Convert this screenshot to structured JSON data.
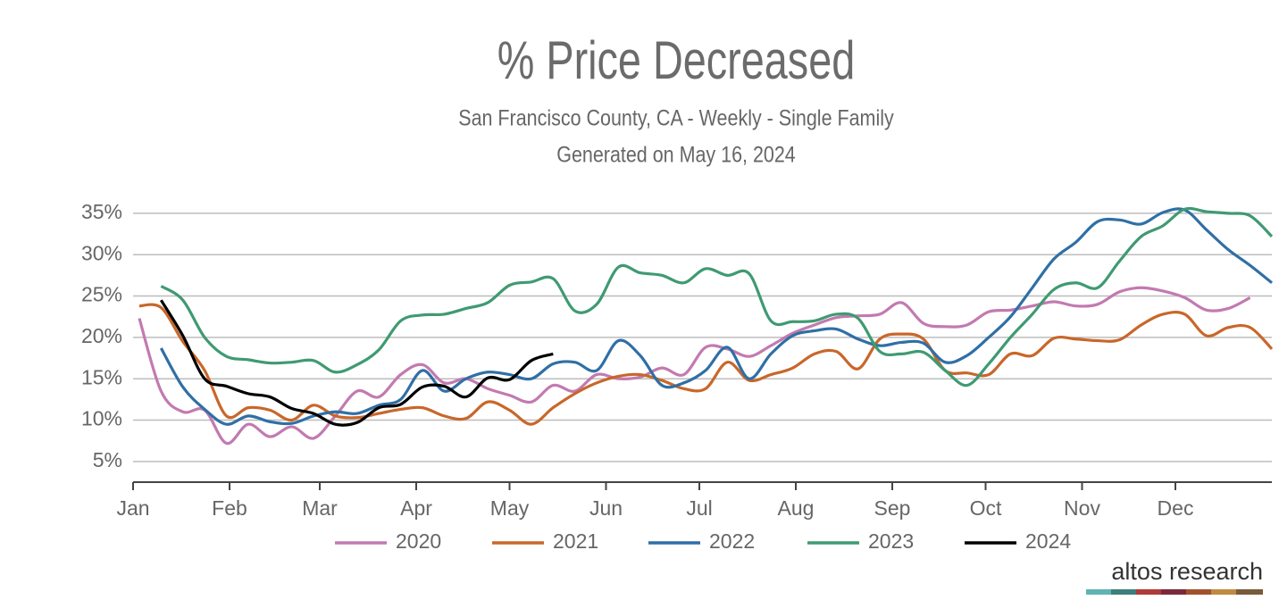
{
  "chart_data": {
    "type": "line",
    "title": "% Price Decreased",
    "subtitle": "San Francisco County, CA - Weekly - Single Family",
    "generated": "Generated on May 16, 2024",
    "logo": "altos research",
    "x": [
      2,
      9,
      16,
      23,
      30,
      37,
      44,
      51,
      58,
      65,
      72,
      79,
      86,
      93,
      100,
      107,
      114,
      121,
      128,
      135,
      142,
      149,
      156,
      163,
      170,
      177,
      184,
      191,
      198,
      205,
      212,
      219,
      226,
      233,
      240,
      247,
      254,
      261,
      268,
      275,
      282,
      289,
      296,
      303,
      310,
      317,
      324,
      331,
      338,
      345,
      352,
      359,
      366
    ],
    "xlim": [
      0,
      366
    ],
    "xticks": [
      {
        "value": 0,
        "label": "Jan"
      },
      {
        "value": 31,
        "label": "Feb"
      },
      {
        "value": 60,
        "label": "Mar"
      },
      {
        "value": 91,
        "label": "Apr"
      },
      {
        "value": 121,
        "label": "May"
      },
      {
        "value": 152,
        "label": "Jun"
      },
      {
        "value": 182,
        "label": "Jul"
      },
      {
        "value": 213,
        "label": "Aug"
      },
      {
        "value": 244,
        "label": "Sep"
      },
      {
        "value": 274,
        "label": "Oct"
      },
      {
        "value": 305,
        "label": "Nov"
      },
      {
        "value": 335,
        "label": "Dec"
      }
    ],
    "ylim": [
      2.5,
      36.5
    ],
    "yticks": [
      {
        "value": 5,
        "label": "5%"
      },
      {
        "value": 10,
        "label": "10%"
      },
      {
        "value": 15,
        "label": "15%"
      },
      {
        "value": 20,
        "label": "20%"
      },
      {
        "value": 25,
        "label": "25%"
      },
      {
        "value": 30,
        "label": "30%"
      },
      {
        "value": 35,
        "label": "35%"
      }
    ],
    "grid": true,
    "legend": "bottom",
    "series": [
      {
        "name": "2020",
        "color": "#c27ab0",
        "values": [
          22.3,
          13.5,
          11,
          11.2,
          7.2,
          9.5,
          8,
          9.2,
          7.8,
          10.5,
          13.5,
          12.8,
          15.5,
          16.7,
          14.5,
          15,
          13.8,
          13,
          12.2,
          14.2,
          13.5,
          15.5,
          15,
          15.2,
          16.3,
          15.5,
          18.8,
          18.6,
          17.7,
          19,
          20.5,
          21.5,
          22.4,
          22.6,
          22.8,
          24.2,
          21.7,
          21.3,
          21.5,
          23.1,
          23.3,
          23.8,
          24.3,
          23.8,
          24,
          25.5,
          26,
          25.6,
          24.8,
          23.3,
          23.5,
          24.8,
          null
        ]
      },
      {
        "name": "2021",
        "color": "#c8672a",
        "values": [
          23.8,
          23.6,
          19.5,
          16,
          10.5,
          11.5,
          11.2,
          10,
          11.8,
          10.5,
          10.3,
          10.8,
          11.3,
          11.5,
          10.5,
          10.2,
          12.2,
          11.2,
          9.5,
          11.5,
          13.2,
          14.5,
          15.3,
          15.5,
          14.8,
          13.8,
          13.8,
          17,
          14.8,
          15.5,
          16.3,
          18,
          18.3,
          16.2,
          19.8,
          20.4,
          19.8,
          16,
          15.7,
          15.5,
          18,
          17.8,
          19.9,
          19.8,
          19.6,
          19.7,
          21.5,
          22.8,
          22.8,
          20.2,
          21.2,
          21.2,
          18.6
        ]
      },
      {
        "name": "2022",
        "color": "#2f6fa6",
        "values": [
          null,
          18.7,
          14,
          11.3,
          9.5,
          10.5,
          9.8,
          9.6,
          10.5,
          11,
          10.8,
          11.8,
          12.5,
          16,
          13.5,
          15,
          15.8,
          15.5,
          15,
          16.8,
          17,
          16,
          19.6,
          17.8,
          14.2,
          14.5,
          16,
          18.8,
          15,
          18,
          20.2,
          20.8,
          21,
          19.8,
          19,
          19.4,
          19.3,
          17,
          17.8,
          20,
          22.5,
          26,
          29.5,
          31.5,
          34,
          34.2,
          33.7,
          35.1,
          35.4,
          33,
          30.6,
          28.7,
          26.6
        ]
      },
      {
        "name": "2023",
        "color": "#3f9a72",
        "values": [
          null,
          26.2,
          24.5,
          20,
          17.7,
          17.3,
          16.9,
          17,
          17.2,
          15.8,
          16.7,
          18.5,
          22,
          22.7,
          22.8,
          23.5,
          24.2,
          26.3,
          26.7,
          27.1,
          23.2,
          24,
          28.5,
          27.8,
          27.5,
          26.6,
          28.3,
          27.5,
          27.7,
          22,
          21.9,
          22,
          22.8,
          22.3,
          18.3,
          18,
          18.2,
          16,
          14.2,
          16.8,
          20,
          22.8,
          25.8,
          26.6,
          26,
          29.2,
          32.2,
          33.5,
          35.5,
          35.2,
          35,
          34.7,
          32.2
        ]
      },
      {
        "name": "2024",
        "color": "#000000",
        "values": [
          null,
          24.5,
          20.2,
          15,
          14.1,
          13.2,
          12.8,
          11.4,
          10.8,
          9.5,
          9.7,
          11.5,
          11.9,
          14,
          14.1,
          12.8,
          15.1,
          14.9,
          17.2,
          18,
          null,
          null,
          null,
          null,
          null,
          null,
          null,
          null,
          null,
          null,
          null,
          null,
          null,
          null,
          null,
          null,
          null,
          null,
          null,
          null,
          null,
          null,
          null,
          null,
          null,
          null,
          null,
          null,
          null,
          null,
          null,
          null,
          null
        ]
      }
    ]
  }
}
